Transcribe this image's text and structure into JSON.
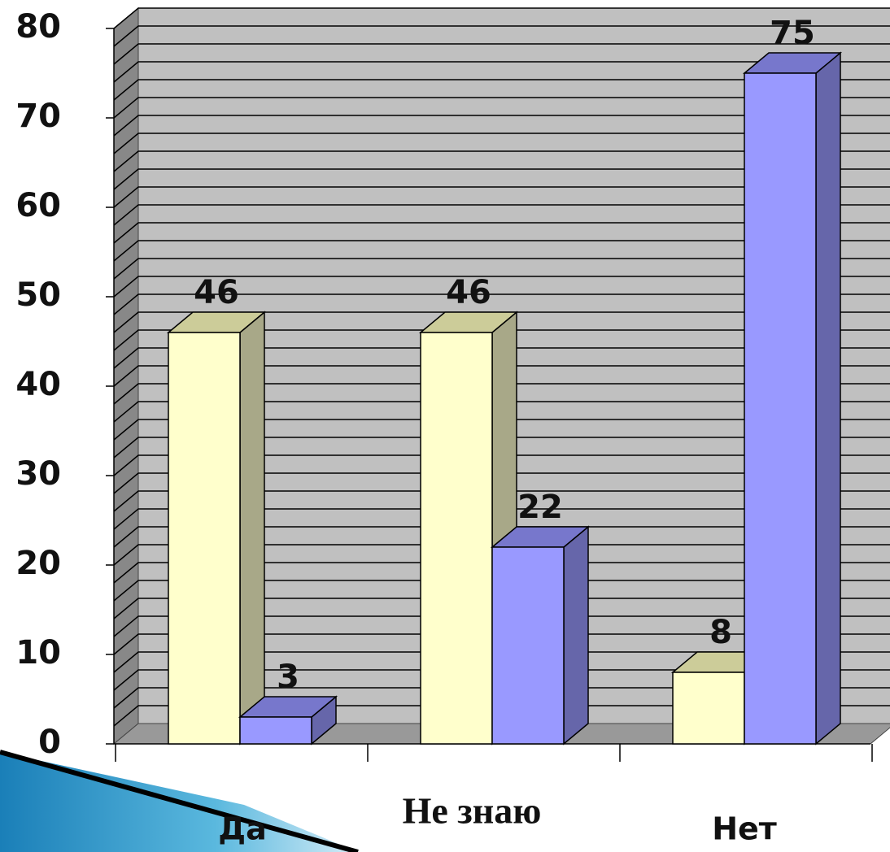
{
  "chart_data": {
    "type": "bar3d",
    "categories": [
      "Да",
      "Не знаю",
      "Нет"
    ],
    "series": [
      {
        "color": "#ffffcc",
        "side": "#a8a888",
        "values": [
          46,
          46,
          8
        ]
      },
      {
        "color": "#9999ff",
        "side": "#6666aa",
        "values": [
          3,
          22,
          75
        ]
      }
    ],
    "ylim": [
      0,
      80
    ],
    "yticks": [
      0,
      10,
      20,
      30,
      40,
      50,
      60,
      70,
      80
    ],
    "minor_yticks": [
      2,
      4,
      6,
      8,
      10,
      12,
      14,
      16,
      18,
      20,
      22,
      24,
      26,
      28,
      30,
      32,
      34,
      36,
      38,
      40,
      42,
      44,
      46,
      48,
      50,
      52,
      54,
      56,
      58,
      60,
      62,
      64,
      66,
      68,
      70,
      72,
      74,
      76,
      78,
      80
    ],
    "grid": true
  }
}
